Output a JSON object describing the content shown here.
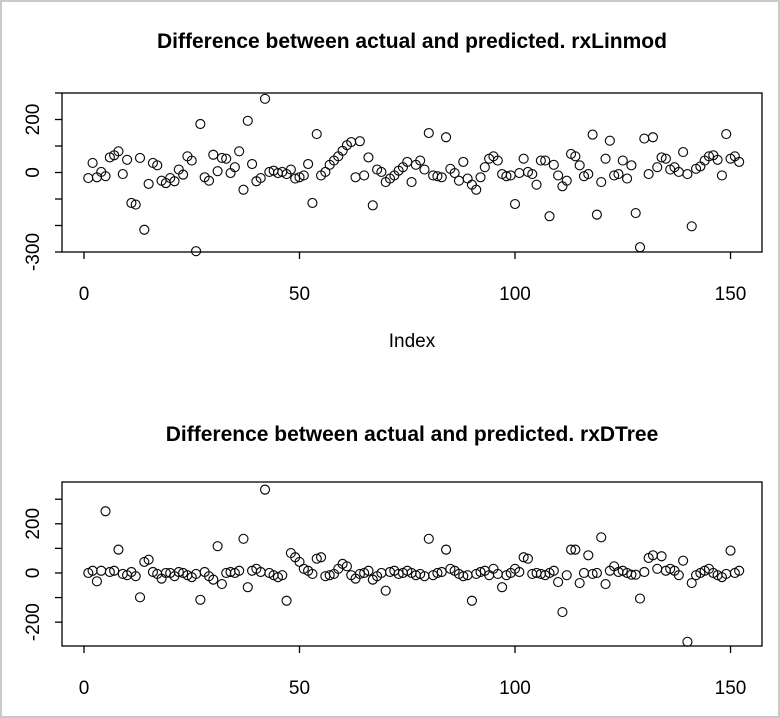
{
  "frame": {
    "background": "#ffffff",
    "border_color": "#c9c9c9"
  },
  "chart_data": [
    {
      "type": "scatter",
      "title": "Difference between actual and predicted. rxLinmod",
      "xlabel": "Index",
      "ylabel": "",
      "marker": "open-circle",
      "grid": false,
      "legend": null,
      "x_is_index": true,
      "n_points": 152,
      "xlim": [
        -5.1,
        157.3
      ],
      "ylim": [
        -300,
        300
      ],
      "x_ticks": [
        {
          "value": 0,
          "label": "0"
        },
        {
          "value": 50,
          "label": "50"
        },
        {
          "value": 100,
          "label": "100"
        },
        {
          "value": 150,
          "label": "150"
        }
      ],
      "y_ticks": [
        {
          "value": 300,
          "label": ""
        },
        {
          "value": 200,
          "label": "200"
        },
        {
          "value": 100,
          "label": ""
        },
        {
          "value": 0,
          "label": "0"
        },
        {
          "value": -100,
          "label": ""
        },
        {
          "value": -200,
          "label": ""
        },
        {
          "value": -300,
          "label": "-300"
        }
      ],
      "y": [
        -21,
        36,
        -18,
        2,
        -14,
        57,
        65,
        80,
        -6,
        48,
        -115,
        -121,
        55,
        -216,
        -43,
        36,
        27,
        -31,
        -40,
        -21,
        -33,
        11,
        -8,
        61,
        45,
        -297,
        183,
        -18,
        -31,
        67,
        5,
        55,
        52,
        -2,
        20,
        80,
        -65,
        195,
        32,
        -33,
        -21,
        278,
        2,
        7,
        -2,
        2,
        -6,
        11,
        -23,
        -18,
        -11,
        32,
        -115,
        145,
        -11,
        2,
        29,
        45,
        61,
        82,
        103,
        115,
        -18,
        118,
        -11,
        57,
        -124,
        11,
        2,
        -36,
        -23,
        -11,
        7,
        20,
        40,
        -36,
        29,
        45,
        11,
        149,
        -11,
        -14,
        -18,
        133,
        14,
        -2,
        -31,
        40,
        -23,
        -46,
        -65,
        -18,
        20,
        52,
        61,
        45,
        -6,
        -14,
        -11,
        -119,
        -2,
        52,
        2,
        -6,
        -46,
        45,
        45,
        -165,
        29,
        -11,
        -52,
        -31,
        70,
        61,
        27,
        -14,
        -6,
        143,
        -159,
        -36,
        52,
        120,
        -11,
        -6,
        45,
        -23,
        27,
        -153,
        -282,
        128,
        -6,
        133,
        20,
        57,
        52,
        11,
        20,
        2,
        77,
        -6,
        -203,
        14,
        23,
        45,
        61,
        65,
        48,
        -11,
        145,
        52,
        61,
        40
      ]
    },
    {
      "type": "scatter",
      "title": "Difference between actual and predicted. rxDTree",
      "xlabel": "",
      "ylabel": "",
      "marker": "open-circle",
      "grid": false,
      "legend": null,
      "x_is_index": true,
      "n_points": 152,
      "xlim": [
        -5.1,
        157.3
      ],
      "ylim": [
        -297,
        370
      ],
      "x_ticks": [
        {
          "value": 0,
          "label": "0"
        },
        {
          "value": 50,
          "label": "50"
        },
        {
          "value": 100,
          "label": "100"
        },
        {
          "value": 150,
          "label": "150"
        }
      ],
      "y_ticks": [
        {
          "value": 300,
          "label": ""
        },
        {
          "value": 200,
          "label": "200"
        },
        {
          "value": 100,
          "label": ""
        },
        {
          "value": 0,
          "label": "0"
        },
        {
          "value": -100,
          "label": ""
        },
        {
          "value": -200,
          "label": "-200"
        }
      ],
      "y": [
        0,
        9,
        -34,
        9,
        251,
        4,
        9,
        95,
        -4,
        -9,
        4,
        -13,
        -99,
        45,
        54,
        4,
        -4,
        -23,
        0,
        0,
        -13,
        4,
        0,
        -9,
        -17,
        -4,
        -109,
        4,
        -13,
        -27,
        109,
        -45,
        0,
        4,
        0,
        9,
        139,
        -58,
        9,
        17,
        4,
        339,
        0,
        -9,
        -17,
        -9,
        -113,
        81,
        64,
        45,
        17,
        9,
        -4,
        58,
        64,
        -13,
        -9,
        -4,
        17,
        37,
        27,
        -9,
        -23,
        -4,
        0,
        9,
        -27,
        -13,
        0,
        -72,
        4,
        9,
        -4,
        0,
        9,
        0,
        -9,
        -4,
        -13,
        139,
        -9,
        0,
        4,
        95,
        17,
        9,
        -4,
        -13,
        -9,
        -113,
        -4,
        4,
        9,
        -9,
        17,
        -4,
        -58,
        -9,
        0,
        17,
        4,
        64,
        58,
        -4,
        0,
        -4,
        -9,
        0,
        9,
        -37,
        -159,
        -9,
        95,
        95,
        -41,
        0,
        72,
        -4,
        0,
        145,
        -45,
        9,
        27,
        4,
        9,
        0,
        -7,
        -7,
        -104,
        4,
        61,
        72,
        17,
        68,
        9,
        17,
        9,
        -9,
        50,
        -280,
        -41,
        -9,
        0,
        9,
        17,
        0,
        -9,
        -17,
        -4,
        91,
        0,
        9
      ]
    }
  ]
}
